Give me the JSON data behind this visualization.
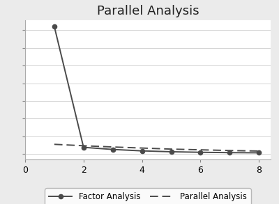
{
  "title": "Parallel Analysis",
  "title_fontsize": 13,
  "background_color": "#ebebeb",
  "plot_background_color": "#ffffff",
  "fa_x": [
    1,
    2,
    3,
    4,
    5,
    6,
    7,
    8
  ],
  "fa_y": [
    7.2,
    0.38,
    0.26,
    0.18,
    0.13,
    0.1,
    0.08,
    0.07
  ],
  "pa_x": [
    1,
    2,
    3,
    4,
    5,
    6,
    7,
    8
  ],
  "pa_y": [
    0.55,
    0.47,
    0.4,
    0.34,
    0.28,
    0.24,
    0.2,
    0.17
  ],
  "xlim": [
    0,
    8.4
  ],
  "xticks": [
    0,
    2,
    4,
    6,
    8
  ],
  "fa_color": "#4a4a4a",
  "pa_color": "#4a4a4a",
  "line_width": 1.4,
  "marker": "o",
  "marker_size": 4.5,
  "legend_labels": [
    "Factor Analysis",
    "Parallel Analysis"
  ],
  "legend_fontsize": 8.5,
  "grid_color": "#cccccc",
  "grid_linewidth": 0.6
}
